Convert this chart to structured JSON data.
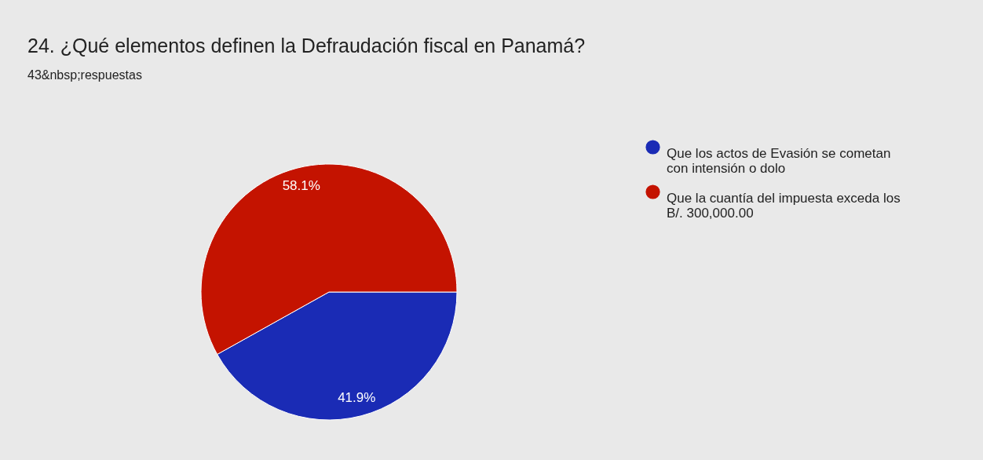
{
  "chart_data": {
    "type": "pie",
    "title": "24. ¿Qué elementos definen la Defraudación fiscal en Panamá?",
    "subtitle": "43&nbsp;respuestas",
    "categories": [
      "Que los actos de Evasión se cometan con intensión o dolo",
      "Que la cuantía del impuesta exceda los B/. 300,000.00"
    ],
    "values": [
      41.9,
      58.1
    ],
    "colors": [
      "#1a2bb5",
      "#c41300"
    ],
    "value_labels": [
      "41.9%",
      "58.1%"
    ],
    "legend": "top right"
  }
}
